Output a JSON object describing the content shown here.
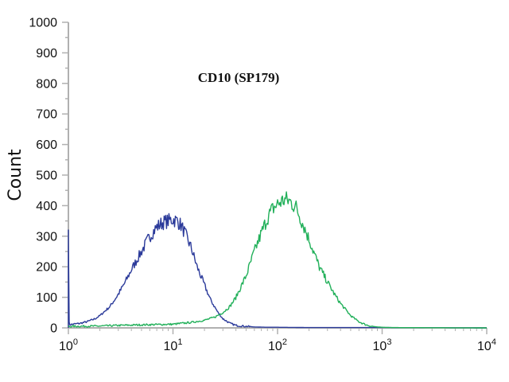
{
  "chart_data": {
    "type": "line",
    "title": "CD10 (SP179)",
    "xlabel": "",
    "ylabel": "Count",
    "x_scale": "log",
    "xlim": [
      1,
      10000
    ],
    "ylim": [
      0,
      1000
    ],
    "grid": false,
    "legend": "none",
    "y_ticks": [
      "0",
      "100",
      "200",
      "300",
      "400",
      "500",
      "600",
      "700",
      "800",
      "900",
      "1000"
    ],
    "x_ticks": [
      {
        "base": "10",
        "exp": "0"
      },
      {
        "base": "10",
        "exp": "1"
      },
      {
        "base": "10",
        "exp": "2"
      },
      {
        "base": "10",
        "exp": "3"
      },
      {
        "base": "10",
        "exp": "4"
      }
    ],
    "colors": {
      "series_1": "#2b3a9a",
      "series_2": "#22b05a",
      "axis": "#b0b0b0"
    },
    "series": [
      {
        "color": "#2b3a9a",
        "x": [
          1,
          1.01,
          1.03,
          1.1,
          1.3,
          1.5,
          1.8,
          2,
          2.5,
          3,
          3.5,
          4,
          5,
          6,
          7,
          8,
          9,
          10,
          11,
          12,
          13,
          15,
          17,
          20,
          23,
          27,
          30,
          35,
          40,
          50,
          60,
          80,
          100,
          200,
          1000,
          10000
        ],
        "y": [
          320,
          20,
          10,
          12,
          15,
          20,
          30,
          40,
          70,
          110,
          150,
          190,
          250,
          300,
          330,
          345,
          350,
          355,
          350,
          335,
          310,
          260,
          200,
          140,
          90,
          50,
          30,
          15,
          8,
          5,
          3,
          2,
          2,
          1,
          1,
          0
        ]
      },
      {
        "color": "#22b05a",
        "x": [
          1,
          2,
          3,
          5,
          10,
          15,
          20,
          25,
          30,
          35,
          40,
          50,
          60,
          70,
          80,
          90,
          100,
          110,
          120,
          130,
          150,
          170,
          200,
          250,
          300,
          350,
          400,
          500,
          600,
          700,
          800,
          900,
          1000,
          1200,
          10000
        ],
        "y": [
          5,
          6,
          8,
          10,
          12,
          18,
          25,
          35,
          50,
          70,
          100,
          170,
          250,
          310,
          360,
          390,
          405,
          415,
          420,
          415,
          395,
          350,
          290,
          200,
          150,
          110,
          80,
          40,
          20,
          10,
          5,
          3,
          2,
          1,
          0
        ]
      }
    ]
  }
}
